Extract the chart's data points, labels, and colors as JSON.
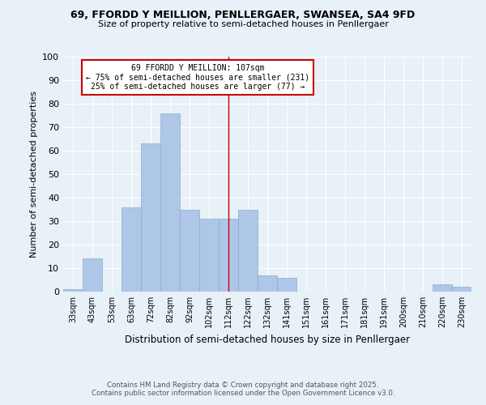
{
  "title": "69, FFORDD Y MEILLION, PENLLERGAER, SWANSEA, SA4 9FD",
  "subtitle": "Size of property relative to semi-detached houses in Penllergaer",
  "xlabel": "Distribution of semi-detached houses by size in Penllergaer",
  "ylabel": "Number of semi-detached properties",
  "bins": [
    "33sqm",
    "43sqm",
    "53sqm",
    "63sqm",
    "72sqm",
    "82sqm",
    "92sqm",
    "102sqm",
    "112sqm",
    "122sqm",
    "132sqm",
    "141sqm",
    "151sqm",
    "161sqm",
    "171sqm",
    "181sqm",
    "191sqm",
    "200sqm",
    "210sqm",
    "220sqm",
    "230sqm"
  ],
  "values": [
    1,
    14,
    0,
    36,
    63,
    76,
    35,
    31,
    31,
    35,
    7,
    6,
    0,
    0,
    0,
    0,
    0,
    0,
    0,
    3,
    2
  ],
  "bar_color": "#aec6e8",
  "bar_edge_color": "#8aafc8",
  "property_size": 107,
  "property_label": "69 FFORDD Y MEILLION: 107sqm",
  "pct_smaller": 75,
  "pct_smaller_count": 231,
  "pct_larger": 25,
  "pct_larger_count": 77,
  "vline_bin_index": 8,
  "vline_color": "#cc0000",
  "box_color": "#cc0000",
  "ylim": [
    0,
    100
  ],
  "yticks": [
    0,
    10,
    20,
    30,
    40,
    50,
    60,
    70,
    80,
    90,
    100
  ],
  "background_color": "#e8f0f8",
  "grid_color": "#ffffff",
  "footer_line1": "Contains HM Land Registry data © Crown copyright and database right 2025.",
  "footer_line2": "Contains public sector information licensed under the Open Government Licence v3.0."
}
